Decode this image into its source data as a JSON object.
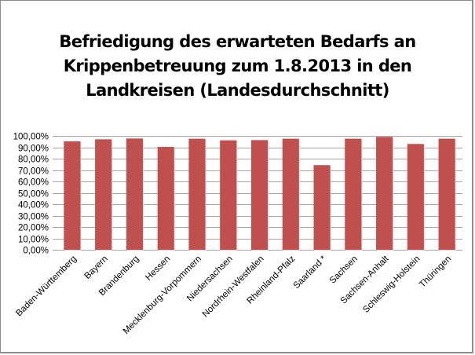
{
  "chart_data": {
    "type": "bar",
    "title_lines": [
      "Befriedigung des erwarteten Bedarfs an",
      "Krippenbetreuung zum 1.8.2013 in den",
      "Landkreisen (Landesdurchschnitt)"
    ],
    "title": "Befriedigung des erwarteten Bedarfs an Krippenbetreuung zum 1.8.2013 in den Landkreisen (Landesdurchschnitt)",
    "xlabel": "",
    "ylabel": "",
    "categories": [
      "Baden-Württemberg",
      "Bayern",
      "Brandenburg",
      "Hessen",
      "Mecklenburg-Vorpommern",
      "Niedersachsen",
      "Nordrhein-Westfalen",
      "Rheinland-Pfalz",
      "Saarland *",
      "Sachsen",
      "Sachsen-Anhalt",
      "Schleswig-Holstein",
      "Thüringen"
    ],
    "series": [
      {
        "name": "Landesdurchschnitt",
        "color": "#C0504D",
        "values": [
          95.2,
          97.0,
          97.7,
          90.3,
          97.5,
          96.1,
          96.3,
          97.5,
          74.3,
          97.5,
          99.1,
          92.9,
          97.5
        ]
      }
    ],
    "ylim": [
      0,
      100
    ],
    "yticks": [
      0,
      10,
      20,
      30,
      40,
      50,
      60,
      70,
      80,
      90,
      100
    ],
    "ytick_labels": [
      "0,00%",
      "10,00%",
      "20,00%",
      "30,00%",
      "40,00%",
      "50,00%",
      "60,00%",
      "70,00%",
      "80,00%",
      "90,00%",
      "100,00%"
    ],
    "grid": true,
    "legend": "none",
    "colors": {
      "bar": "#C0504D",
      "grid": "#a6a6a6",
      "frame": "#8c8c8c"
    }
  }
}
